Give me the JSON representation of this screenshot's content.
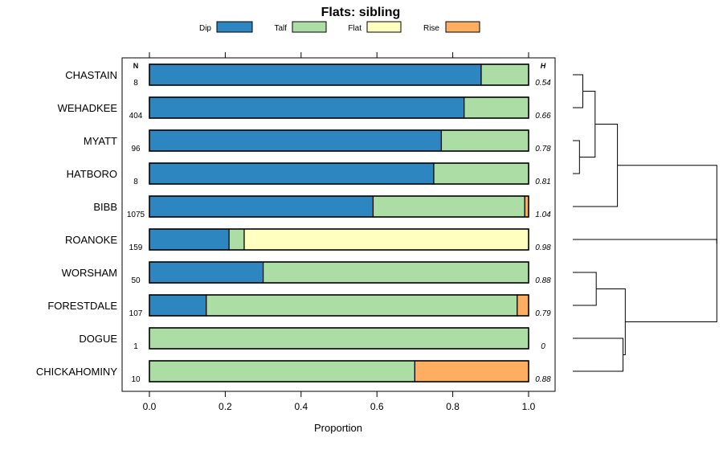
{
  "chart_data": {
    "type": "bar",
    "stacked": true,
    "orientation": "horizontal",
    "title": "Flats: sibling",
    "xlabel": "Proportion",
    "xlim": [
      0,
      1
    ],
    "xticks": [
      "0.0",
      "0.2",
      "0.4",
      "0.6",
      "0.8",
      "1.0"
    ],
    "xtick_values": [
      0,
      0.2,
      0.4,
      0.6,
      0.8,
      1.0
    ],
    "n_header": "N",
    "h_header": "H",
    "legend": [
      {
        "name": "Dip",
        "color": "#2e86c1"
      },
      {
        "name": "Talf",
        "color": "#abdda4"
      },
      {
        "name": "Flat",
        "color": "#ffffbf"
      },
      {
        "name": "Rise",
        "color": "#fdae61"
      }
    ],
    "categories": [
      "CHASTAIN",
      "WEHADKEE",
      "MYATT",
      "HATBORO",
      "BIBB",
      "ROANOKE",
      "WORSHAM",
      "FORESTDALE",
      "DOGUE",
      "CHICKAHOMINY"
    ],
    "n": [
      "8",
      "404",
      "96",
      "8",
      "1075",
      "159",
      "50",
      "107",
      "1",
      "10"
    ],
    "h": [
      "0.54",
      "0.66",
      "0.78",
      "0.81",
      "1.04",
      "0.98",
      "0.88",
      "0.79",
      "0",
      "0.88"
    ],
    "series": [
      {
        "name": "Dip",
        "values": [
          0.875,
          0.83,
          0.77,
          0.75,
          0.59,
          0.21,
          0.3,
          0.15,
          0.0,
          0.0
        ]
      },
      {
        "name": "Talf",
        "values": [
          0.125,
          0.17,
          0.23,
          0.25,
          0.4,
          0.04,
          0.7,
          0.82,
          1.0,
          0.7
        ]
      },
      {
        "name": "Flat",
        "values": [
          0.0,
          0.0,
          0.0,
          0.0,
          0.0,
          0.75,
          0.0,
          0.0,
          0.0,
          0.0
        ]
      },
      {
        "name": "Rise",
        "values": [
          0.0,
          0.0,
          0.0,
          0.0,
          0.01,
          0.0,
          0.0,
          0.03,
          0.0,
          0.3
        ]
      }
    ],
    "dendrogram": {
      "leaves": [
        "CHASTAIN",
        "WEHADKEE",
        "MYATT",
        "HATBORO",
        "BIBB",
        "ROANOKE",
        "WORSHAM",
        "FORESTDALE",
        "DOGUE",
        "CHICKAHOMINY"
      ],
      "merges": [
        {
          "a": 0,
          "b": 1,
          "height": 0.09
        },
        {
          "a": 2,
          "b": 3,
          "height": 0.06
        },
        {
          "a": "m0",
          "b": "m1",
          "height": 0.2
        },
        {
          "a": "m2",
          "b": 4,
          "height": 0.4
        },
        {
          "a": 6,
          "b": 7,
          "height": 0.21
        },
        {
          "a": 8,
          "b": 9,
          "height": 0.45
        },
        {
          "a": "m4",
          "b": "m5",
          "height": 0.47
        },
        {
          "a": "m3",
          "b": "m6",
          "height": 1.29
        },
        {
          "a": 5,
          "b": "m7",
          "height": 1.29
        }
      ]
    }
  }
}
